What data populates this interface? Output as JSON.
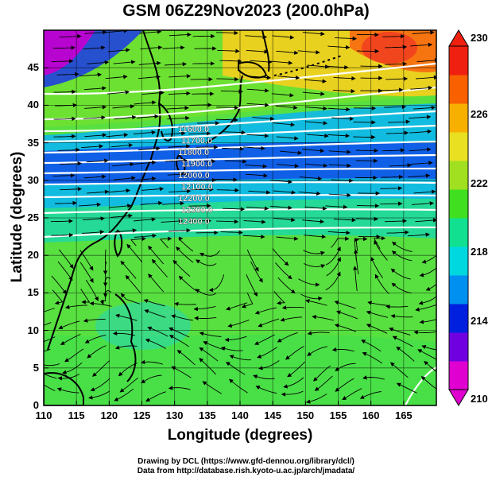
{
  "title": "GSM 06Z29Nov2023 (200.0hPa)",
  "xlabel": "Longitude (degrees)",
  "ylabel": "Latitude  (degrees)",
  "credits": [
    "Drawing by DCL (https://www.gfd-dennou.org/library/dcl/)",
    "Data from http://database.rish.kyoto-u.ac.jp/arch/jmadata/"
  ],
  "map": {
    "lon_range": [
      110,
      170
    ],
    "lat_range": [
      0,
      50
    ],
    "x_ticks": [
      "110",
      "115",
      "120",
      "125",
      "130",
      "135",
      "140",
      "145",
      "150",
      "155",
      "160",
      "165"
    ],
    "y_ticks": [
      "0",
      "5",
      "10",
      "15",
      "20",
      "25",
      "30",
      "35",
      "40",
      "45"
    ],
    "field": "temperature",
    "colorbar": {
      "min": 210,
      "max": 230,
      "tick_labels": [
        "210",
        "214",
        "218",
        "222",
        "226",
        "230"
      ],
      "colors": [
        "#e000d0",
        "#7000e0",
        "#0020e0",
        "#0090f0",
        "#00d8e0",
        "#10e090",
        "#40e020",
        "#a0e020",
        "#e8e020",
        "#f8b000",
        "#f86000",
        "#f02010"
      ]
    },
    "contour_labels": [
      "11600.0",
      "11700.0",
      "11800.0",
      "11900.0",
      "12000.0",
      "12100.0",
      "12200.0",
      "12300.0",
      "12400.0"
    ]
  }
}
